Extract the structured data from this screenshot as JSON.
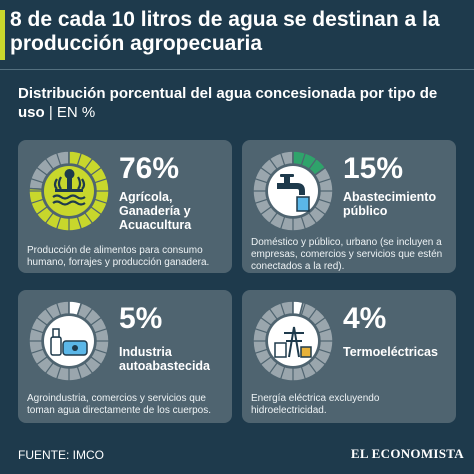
{
  "header": {
    "title": "8 de cada 10 litros de agua se destinan a la producción agropecuaria",
    "subtitle": "Distribución porcentual del agua concesionada por tipo de uso",
    "unit": "| EN %"
  },
  "chart_data": {
    "type": "pie",
    "categories": [
      "Agrícola, Ganadería y Acuacultura",
      "Abastecimiento público",
      "Industria autoabastecida",
      "Termoeléctricas"
    ],
    "values": [
      76,
      15,
      5,
      4
    ]
  },
  "cards": [
    {
      "percent": "76%",
      "label": "Agrícola, Ganadería y Acuacultura",
      "description": "Producción de alimentos para consumo humano, forrajes y producción ganadera.",
      "icon": "farm-icon"
    },
    {
      "percent": "15%",
      "label": "Abastecimiento público",
      "description": "Doméstico y público, urbano (se incluyen a empresas, comercios y servicios que estén conectados a la red).",
      "icon": "faucet-icon"
    },
    {
      "percent": "5%",
      "label": "Industria autoabastecida",
      "description": "Agroindustria, comercios y servicios que toman agua directamente de los cuerpos.",
      "icon": "factory-icon"
    },
    {
      "percent": "4%",
      "label": "Termoeléctricas",
      "description": "Energía eléctrica excluyendo hidroelectricidad.",
      "icon": "power-plant-icon"
    }
  ],
  "colors": {
    "background": "#1e3a4c",
    "card": "#4f6470",
    "highlight": "#c8d72c",
    "ring": "#9aa6ad",
    "faucet_green": "#2fa36b",
    "gold": "#e8b23a"
  },
  "footer": {
    "source": "FUENTE: IMCO",
    "brand": "EL ECONOMISTA"
  }
}
